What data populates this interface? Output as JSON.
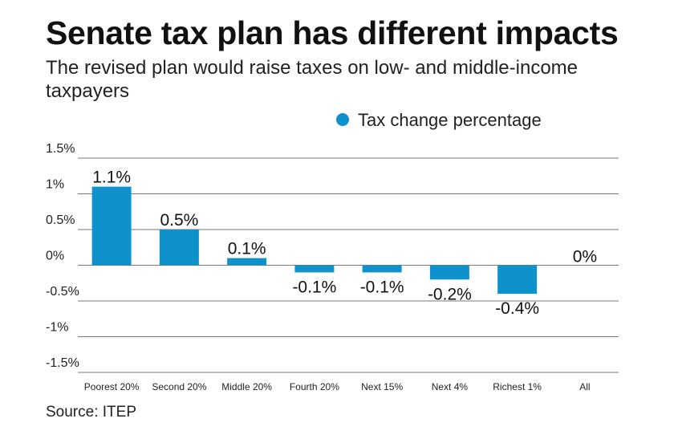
{
  "chart_data": {
    "type": "bar",
    "title": "Senate tax plan has different impacts",
    "subtitle": "The revised plan would raise taxes on low- and middle-income taxpayers",
    "categories": [
      "Poorest 20%",
      "Second 20%",
      "Middle 20%",
      "Fourth 20%",
      "Next 15%",
      "Next 4%",
      "Richest 1%",
      "All"
    ],
    "series": [
      {
        "name": "Tax change percentage",
        "values": [
          1.1,
          0.5,
          0.1,
          -0.1,
          -0.1,
          -0.2,
          -0.4,
          0
        ],
        "labels": [
          "1.1%",
          "0.5%",
          "0.1%",
          "-0.1%",
          "-0.1%",
          "-0.2%",
          "-0.4%",
          "0%"
        ]
      }
    ],
    "ylim": [
      -1.5,
      1.5
    ],
    "yticks": [
      1.5,
      1,
      0.5,
      0,
      -0.5,
      -1,
      -1.5
    ],
    "ytick_labels": [
      "1.5%",
      "1%",
      "0.5%",
      "0%",
      "-0.5%",
      "-1%",
      "-1.5%"
    ],
    "xlabel": "",
    "ylabel": "",
    "grid": true,
    "legend_position": "top-right",
    "colors": {
      "bar": "#0f92cc",
      "grid": "#7a7a7a",
      "text": "#111111"
    }
  },
  "source": "Source: ITEP"
}
